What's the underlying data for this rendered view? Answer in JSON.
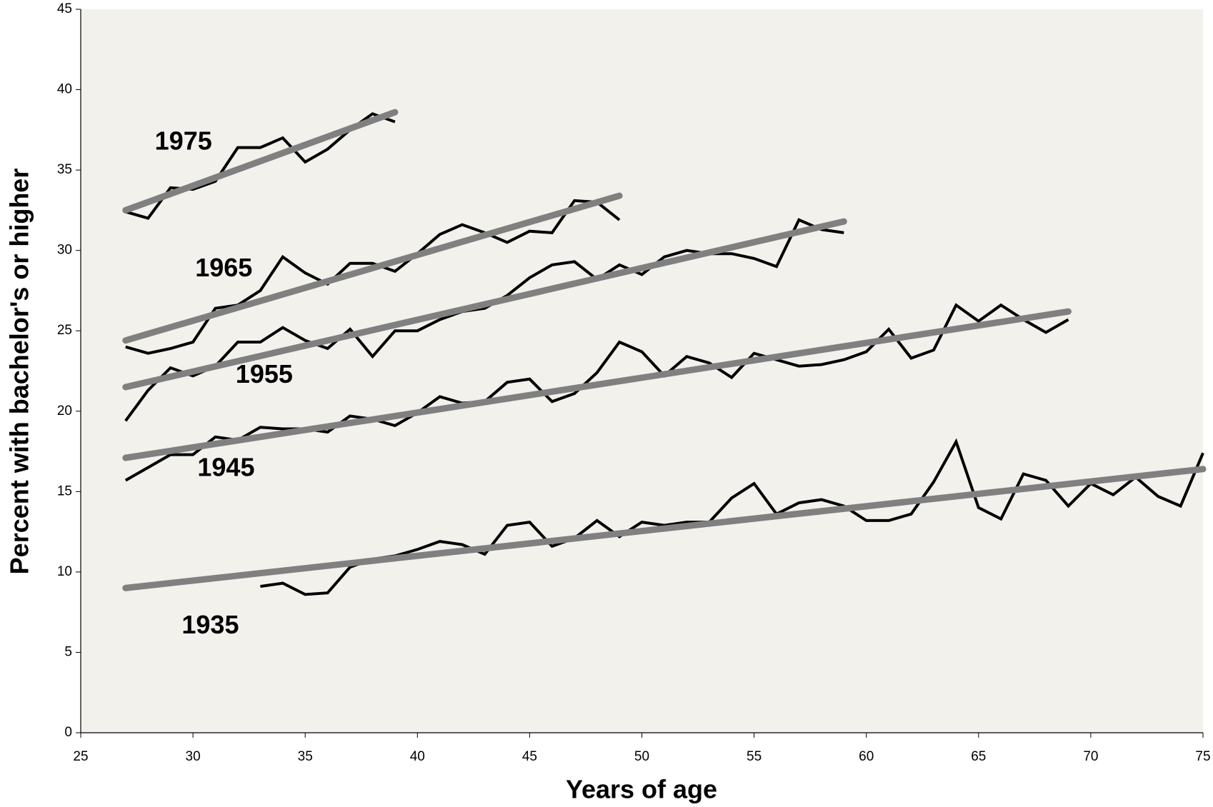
{
  "chart_data": {
    "type": "line",
    "x_label": "Years of age",
    "y_label": "Percent with bachelor's or higher",
    "xlim": [
      25,
      75
    ],
    "xticks": [
      25,
      30,
      35,
      40,
      45,
      50,
      55,
      60,
      65,
      70,
      75
    ],
    "ylim": [
      0,
      45
    ],
    "yticks": [
      0,
      5,
      10,
      15,
      20,
      25,
      30,
      35,
      40,
      45
    ],
    "background": "#f2f1ec",
    "series": [
      {
        "name": "1975",
        "color": "#000000",
        "x": [
          27,
          28,
          29,
          30,
          31,
          32,
          33,
          34,
          35,
          36,
          37,
          38,
          39
        ],
        "values": [
          32.4,
          32.0,
          33.9,
          33.8,
          34.3,
          36.4,
          36.4,
          37.0,
          35.5,
          36.3,
          37.5,
          38.5,
          38.0
        ],
        "trend": {
          "color": "#808080",
          "x": [
            27,
            39
          ],
          "values": [
            32.5,
            38.6
          ]
        }
      },
      {
        "name": "1965",
        "color": "#000000",
        "x": [
          27,
          28,
          29,
          30,
          31,
          32,
          33,
          34,
          35,
          36,
          37,
          38,
          39,
          40,
          41,
          42,
          43,
          44,
          45,
          46,
          47,
          48,
          49
        ],
        "values": [
          24.0,
          23.6,
          23.9,
          24.3,
          26.4,
          26.6,
          27.5,
          29.6,
          28.6,
          27.9,
          29.2,
          29.2,
          28.7,
          29.8,
          31.0,
          31.6,
          31.1,
          30.5,
          31.2,
          31.1,
          33.1,
          33.0,
          31.9
        ],
        "trend": {
          "color": "#808080",
          "x": [
            27,
            49
          ],
          "values": [
            24.4,
            33.4
          ]
        }
      },
      {
        "name": "1955",
        "color": "#000000",
        "x": [
          27,
          28,
          29,
          30,
          31,
          32,
          33,
          34,
          35,
          36,
          37,
          38,
          39,
          40,
          41,
          42,
          43,
          44,
          45,
          46,
          47,
          48,
          49,
          50,
          51,
          52,
          53,
          54,
          55,
          56,
          57,
          58,
          59
        ],
        "values": [
          19.4,
          21.3,
          22.7,
          22.2,
          22.8,
          24.3,
          24.3,
          25.2,
          24.4,
          23.9,
          25.1,
          23.4,
          25.0,
          25.0,
          25.7,
          26.2,
          26.4,
          27.2,
          28.3,
          29.1,
          29.3,
          28.2,
          29.1,
          28.5,
          29.6,
          30.0,
          29.8,
          29.8,
          29.5,
          29.0,
          31.9,
          31.3,
          31.1
        ],
        "trend": {
          "color": "#808080",
          "x": [
            27,
            59
          ],
          "values": [
            21.5,
            31.8
          ]
        }
      },
      {
        "name": "1945",
        "color": "#000000",
        "x": [
          27,
          28,
          29,
          30,
          31,
          32,
          33,
          34,
          35,
          36,
          37,
          38,
          39,
          40,
          41,
          42,
          43,
          44,
          45,
          46,
          47,
          48,
          49,
          50,
          51,
          52,
          53,
          54,
          55,
          56,
          57,
          58,
          59,
          60,
          61,
          62,
          63,
          64,
          65,
          66,
          67,
          68,
          69
        ],
        "values": [
          15.7,
          16.5,
          17.3,
          17.3,
          18.4,
          18.2,
          19.0,
          18.9,
          18.9,
          18.7,
          19.7,
          19.5,
          19.1,
          19.9,
          20.9,
          20.5,
          20.6,
          21.8,
          22.0,
          20.6,
          21.1,
          22.4,
          24.3,
          23.7,
          22.2,
          23.4,
          23.0,
          22.1,
          23.6,
          23.2,
          22.8,
          22.9,
          23.2,
          23.7,
          25.1,
          23.3,
          23.8,
          26.6,
          25.6,
          26.6,
          25.7,
          24.9,
          25.7
        ],
        "trend": {
          "color": "#808080",
          "x": [
            27,
            69
          ],
          "values": [
            17.1,
            26.2
          ]
        }
      },
      {
        "name": "1935",
        "color": "#000000",
        "x": [
          33,
          34,
          35,
          36,
          37,
          38,
          39,
          40,
          41,
          42,
          43,
          44,
          45,
          46,
          47,
          48,
          49,
          50,
          51,
          52,
          53,
          54,
          55,
          56,
          57,
          58,
          59,
          60,
          61,
          62,
          63,
          64,
          65,
          66,
          67,
          68,
          69,
          70,
          71,
          72,
          73,
          74,
          75
        ],
        "values": [
          9.1,
          9.3,
          8.6,
          8.7,
          10.3,
          10.8,
          11.0,
          11.4,
          11.9,
          11.7,
          11.1,
          12.9,
          13.1,
          11.6,
          12.1,
          13.2,
          12.2,
          13.1,
          12.9,
          13.1,
          13.1,
          14.6,
          15.5,
          13.6,
          14.3,
          14.5,
          14.1,
          13.2,
          13.2,
          13.6,
          15.6,
          18.1,
          14.0,
          13.3,
          16.1,
          15.7,
          14.1,
          15.5,
          14.8,
          15.9,
          14.7,
          14.1,
          17.4
        ],
        "trend": {
          "color": "#808080",
          "x": [
            27,
            75
          ],
          "values": [
            9.0,
            16.4
          ]
        }
      }
    ]
  }
}
